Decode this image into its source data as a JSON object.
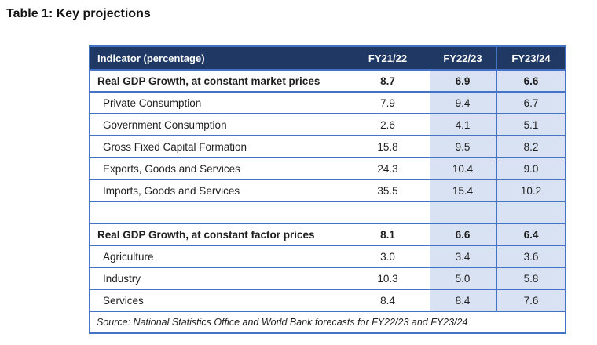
{
  "title": "Table 1: Key projections",
  "table": {
    "columns": [
      "Indicator (percentage)",
      "FY21/22",
      "FY22/23",
      "FY23/24"
    ],
    "rows": [
      {
        "label": "Real GDP Growth, at constant market prices",
        "bold": true,
        "spacer": false,
        "values": [
          "8.7",
          "6.9",
          "6.6"
        ]
      },
      {
        "label": "Private Consumption",
        "bold": false,
        "spacer": false,
        "values": [
          "7.9",
          "9.4",
          "6.7"
        ]
      },
      {
        "label": "Government Consumption",
        "bold": false,
        "spacer": false,
        "values": [
          "2.6",
          "4.1",
          "5.1"
        ]
      },
      {
        "label": "Gross Fixed Capital Formation",
        "bold": false,
        "spacer": false,
        "values": [
          "15.8",
          "9.5",
          "8.2"
        ]
      },
      {
        "label": "Exports, Goods and Services",
        "bold": false,
        "spacer": false,
        "values": [
          "24.3",
          "10.4",
          "9.0"
        ]
      },
      {
        "label": "Imports, Goods and Services",
        "bold": false,
        "spacer": false,
        "values": [
          "35.5",
          "15.4",
          "10.2"
        ]
      },
      {
        "label": "",
        "bold": false,
        "spacer": true,
        "values": [
          "",
          "",
          ""
        ]
      },
      {
        "label": "Real GDP Growth, at constant factor prices",
        "bold": true,
        "spacer": false,
        "values": [
          "8.1",
          "6.6",
          "6.4"
        ]
      },
      {
        "label": "Agriculture",
        "bold": false,
        "spacer": false,
        "values": [
          "3.0",
          "3.4",
          "3.6"
        ]
      },
      {
        "label": "Industry",
        "bold": false,
        "spacer": false,
        "values": [
          "10.3",
          "5.0",
          "5.8"
        ]
      },
      {
        "label": "Services",
        "bold": false,
        "spacer": false,
        "values": [
          "8.4",
          "8.4",
          "7.6"
        ]
      }
    ],
    "source": "Source: National Statistics Office and World Bank forecasts for FY22/23 and FY23/24"
  },
  "colors": {
    "header_bg": "#1F3864",
    "header_text": "#FFFFFF",
    "shaded_cell_bg": "#D9E2F3",
    "border": "#4472C4",
    "body_text": "#1F1F1F"
  }
}
